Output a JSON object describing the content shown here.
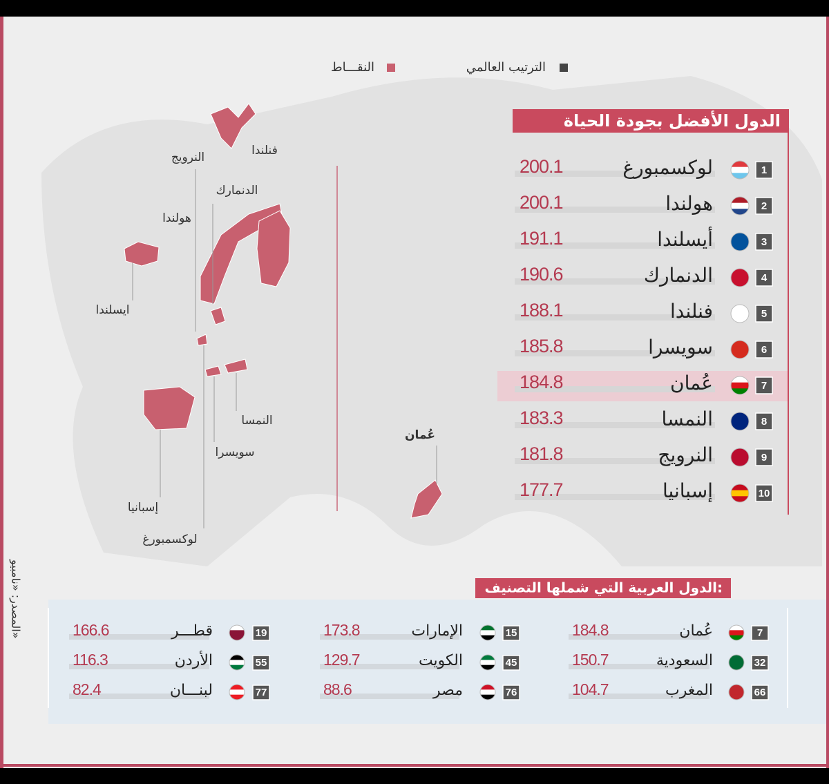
{
  "legend": {
    "rank": "الترتيب العالمي",
    "points": "النقـــاط"
  },
  "map_labels": [
    "فنلندا",
    "النرويج",
    "الدنمارك",
    "هولندا",
    "ايسلندا",
    "النمسا",
    "سويسرا",
    "إسبانيا",
    "لوكسمبورغ",
    "عُمان"
  ],
  "top10": {
    "title": "الدول الأفضل بجودة الحياة",
    "rows": [
      {
        "rank": 1,
        "country": "لوكسمبورغ",
        "score": 200.1
      },
      {
        "rank": 2,
        "country": "هولندا",
        "score": 200.1
      },
      {
        "rank": 3,
        "country": "أيسلندا",
        "score": 191.1
      },
      {
        "rank": 4,
        "country": "الدنمارك",
        "score": 190.6
      },
      {
        "rank": 5,
        "country": "فنلندا",
        "score": 188.1
      },
      {
        "rank": 6,
        "country": "سويسرا",
        "score": 185.8
      },
      {
        "rank": 7,
        "country": "عُمان",
        "score": 184.8
      },
      {
        "rank": 8,
        "country": "النمسا",
        "score": 183.3
      },
      {
        "rank": 9,
        "country": "النرويج",
        "score": 181.8
      },
      {
        "rank": 10,
        "country": "إسبانيا",
        "score": 177.7
      }
    ]
  },
  "arab": {
    "title": "الدول العربية التي شملها التصنيف:",
    "rows": [
      {
        "rank": 7,
        "country": "عُمان",
        "score": 184.8
      },
      {
        "rank": 32,
        "country": "السعودية",
        "score": 150.7
      },
      {
        "rank": 66,
        "country": "المغرب",
        "score": 104.7
      },
      {
        "rank": 15,
        "country": "الإمارات",
        "score": 173.8
      },
      {
        "rank": 45,
        "country": "الكويت",
        "score": 129.7
      },
      {
        "rank": 76,
        "country": "مصر",
        "score": 88.6
      },
      {
        "rank": 19,
        "country": "قطـــر",
        "score": 166.6
      },
      {
        "rank": 55,
        "country": "الأردن",
        "score": 116.3
      },
      {
        "rank": 77,
        "country": "لبنـــان",
        "score": 82.4
      }
    ]
  },
  "source": "المصدر: «نامبيو»"
}
